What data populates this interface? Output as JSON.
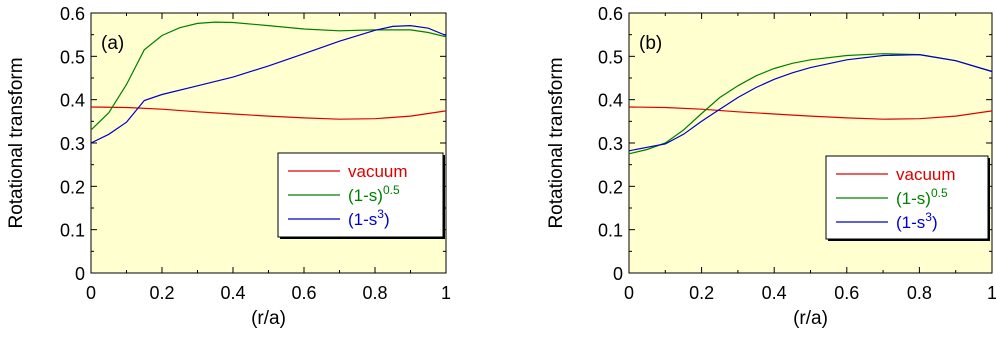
{
  "chart_data": [
    {
      "type": "line",
      "panel_label": "(a)",
      "xlabel": "(r/a)",
      "ylabel": "Rotational transform",
      "xlim": [
        0,
        1
      ],
      "ylim": [
        0,
        0.6
      ],
      "x_ticks": [
        "0",
        "0.2",
        "0.4",
        "0.6",
        "0.8",
        "1"
      ],
      "y_ticks": [
        "0",
        "0.1",
        "0.2",
        "0.3",
        "0.4",
        "0.5",
        "0.6"
      ],
      "grid": false,
      "legend_position": "bottom-right",
      "series": [
        {
          "name": "vacuum",
          "color": "#e00000",
          "x": [
            0,
            0.1,
            0.2,
            0.3,
            0.4,
            0.5,
            0.6,
            0.7,
            0.8,
            0.9,
            1.0
          ],
          "y": [
            0.383,
            0.382,
            0.378,
            0.372,
            0.367,
            0.362,
            0.358,
            0.355,
            0.356,
            0.362,
            0.374
          ]
        },
        {
          "name": "(1-s)^0.5",
          "color": "#008000",
          "x": [
            0,
            0.05,
            0.1,
            0.15,
            0.2,
            0.25,
            0.3,
            0.35,
            0.4,
            0.5,
            0.6,
            0.7,
            0.8,
            0.9,
            0.95,
            1.0
          ],
          "y": [
            0.33,
            0.37,
            0.435,
            0.515,
            0.548,
            0.566,
            0.576,
            0.579,
            0.578,
            0.571,
            0.563,
            0.559,
            0.561,
            0.561,
            0.555,
            0.545
          ]
        },
        {
          "name": "(1-s^3)",
          "color": "#0000cc",
          "x": [
            0,
            0.05,
            0.1,
            0.15,
            0.2,
            0.3,
            0.4,
            0.5,
            0.6,
            0.7,
            0.8,
            0.85,
            0.9,
            0.95,
            1.0
          ],
          "y": [
            0.3,
            0.32,
            0.348,
            0.398,
            0.412,
            0.432,
            0.452,
            0.478,
            0.506,
            0.535,
            0.56,
            0.569,
            0.571,
            0.565,
            0.548
          ]
        }
      ],
      "legend": [
        {
          "label": "vacuum",
          "sup": ""
        },
        {
          "label": "(1-s)",
          "sup": "0.5"
        },
        {
          "label": "(1-s",
          "sup": "3",
          "suffix": ")"
        }
      ]
    },
    {
      "type": "line",
      "panel_label": "(b)",
      "xlabel": "(r/a)",
      "ylabel": "Rotational transform",
      "xlim": [
        0,
        1
      ],
      "ylim": [
        0,
        0.6
      ],
      "x_ticks": [
        "0",
        "0.2",
        "0.4",
        "0.6",
        "0.8",
        "1"
      ],
      "y_ticks": [
        "0",
        "0.1",
        "0.2",
        "0.3",
        "0.4",
        "0.5",
        "0.6"
      ],
      "grid": false,
      "legend_position": "bottom-right",
      "series": [
        {
          "name": "vacuum",
          "color": "#e00000",
          "x": [
            0,
            0.1,
            0.2,
            0.3,
            0.4,
            0.5,
            0.6,
            0.7,
            0.8,
            0.9,
            1.0
          ],
          "y": [
            0.383,
            0.382,
            0.378,
            0.372,
            0.367,
            0.362,
            0.358,
            0.355,
            0.356,
            0.362,
            0.374
          ]
        },
        {
          "name": "(1-s)^0.5",
          "color": "#008000",
          "x": [
            0,
            0.05,
            0.1,
            0.15,
            0.2,
            0.25,
            0.3,
            0.35,
            0.4,
            0.45,
            0.5,
            0.6,
            0.7,
            0.8,
            0.9,
            1.0
          ],
          "y": [
            0.275,
            0.285,
            0.3,
            0.33,
            0.368,
            0.405,
            0.432,
            0.455,
            0.472,
            0.484,
            0.492,
            0.502,
            0.506,
            0.504,
            0.49,
            0.465
          ]
        },
        {
          "name": "(1-s^3)",
          "color": "#0000cc",
          "x": [
            0,
            0.05,
            0.1,
            0.15,
            0.2,
            0.25,
            0.3,
            0.35,
            0.4,
            0.45,
            0.5,
            0.6,
            0.7,
            0.8,
            0.9,
            1.0
          ],
          "y": [
            0.282,
            0.29,
            0.298,
            0.32,
            0.35,
            0.378,
            0.405,
            0.428,
            0.447,
            0.462,
            0.474,
            0.492,
            0.502,
            0.504,
            0.49,
            0.465
          ]
        }
      ],
      "legend": [
        {
          "label": "vacuum",
          "sup": ""
        },
        {
          "label": "(1-s)",
          "sup": "0.5"
        },
        {
          "label": "(1-s",
          "sup": "3",
          "suffix": ")"
        }
      ]
    }
  ]
}
